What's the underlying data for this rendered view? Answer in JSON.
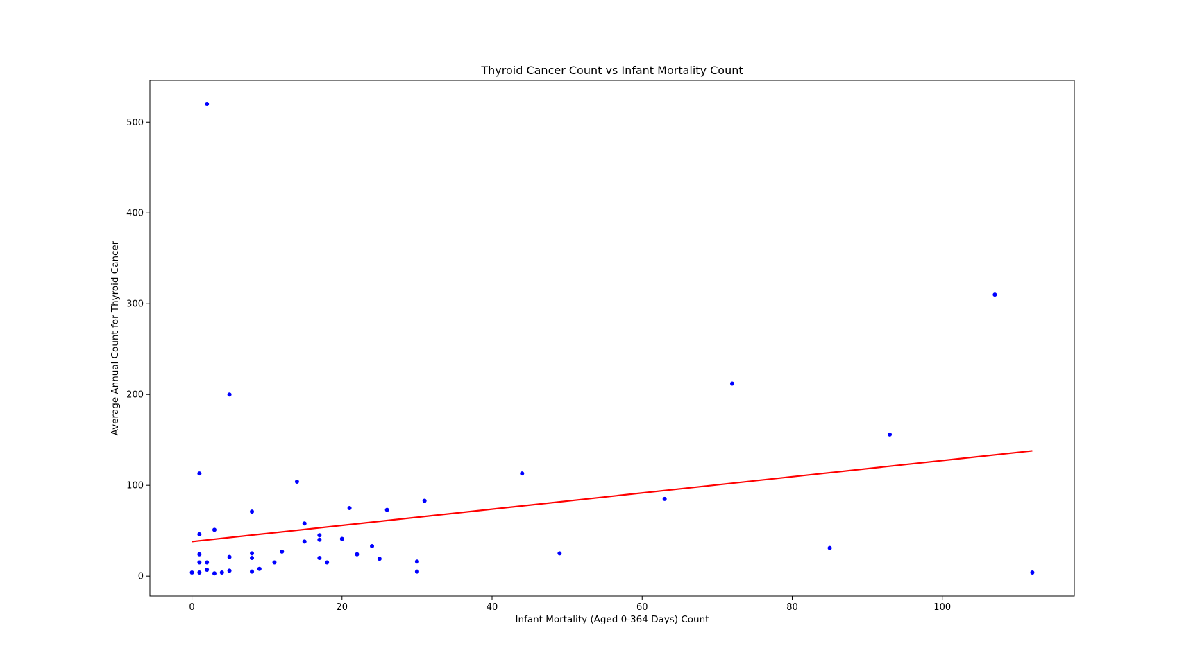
{
  "chart_data": {
    "type": "scatter",
    "title": "Thyroid Cancer Count vs Infant Mortality Count",
    "xlabel": "Infant Mortality (Aged 0-364 Days) Count",
    "ylabel": "Average Annual Count for Thyroid Cancer",
    "xlim": [
      -5.6,
      117.6
    ],
    "ylim": [
      -22,
      546
    ],
    "xticks": [
      0,
      20,
      40,
      60,
      80,
      100
    ],
    "yticks": [
      0,
      100,
      200,
      300,
      400,
      500
    ],
    "grid": false,
    "point_color": "#0000ff",
    "trend_color": "#ff0000",
    "points": [
      {
        "x": 0,
        "y": 4
      },
      {
        "x": 1,
        "y": 4
      },
      {
        "x": 1,
        "y": 15
      },
      {
        "x": 1,
        "y": 24
      },
      {
        "x": 1,
        "y": 46
      },
      {
        "x": 1,
        "y": 113
      },
      {
        "x": 2,
        "y": 520
      },
      {
        "x": 2,
        "y": 7
      },
      {
        "x": 2,
        "y": 15
      },
      {
        "x": 3,
        "y": 3
      },
      {
        "x": 3,
        "y": 51
      },
      {
        "x": 4,
        "y": 4
      },
      {
        "x": 5,
        "y": 6
      },
      {
        "x": 5,
        "y": 21
      },
      {
        "x": 5,
        "y": 200
      },
      {
        "x": 8,
        "y": 5
      },
      {
        "x": 8,
        "y": 20
      },
      {
        "x": 8,
        "y": 25
      },
      {
        "x": 8,
        "y": 71
      },
      {
        "x": 9,
        "y": 8
      },
      {
        "x": 11,
        "y": 15
      },
      {
        "x": 12,
        "y": 27
      },
      {
        "x": 14,
        "y": 104
      },
      {
        "x": 15,
        "y": 38
      },
      {
        "x": 15,
        "y": 58
      },
      {
        "x": 17,
        "y": 20
      },
      {
        "x": 17,
        "y": 40
      },
      {
        "x": 17,
        "y": 45
      },
      {
        "x": 18,
        "y": 15
      },
      {
        "x": 20,
        "y": 41
      },
      {
        "x": 21,
        "y": 75
      },
      {
        "x": 22,
        "y": 24
      },
      {
        "x": 24,
        "y": 33
      },
      {
        "x": 25,
        "y": 19
      },
      {
        "x": 26,
        "y": 73
      },
      {
        "x": 30,
        "y": 5
      },
      {
        "x": 30,
        "y": 16
      },
      {
        "x": 31,
        "y": 83
      },
      {
        "x": 44,
        "y": 113
      },
      {
        "x": 49,
        "y": 25
      },
      {
        "x": 63,
        "y": 85
      },
      {
        "x": 72,
        "y": 212
      },
      {
        "x": 85,
        "y": 31
      },
      {
        "x": 93,
        "y": 156
      },
      {
        "x": 107,
        "y": 310
      },
      {
        "x": 112,
        "y": 4
      }
    ],
    "trend_line": {
      "x": [
        0,
        112
      ],
      "y": [
        38,
        138
      ]
    }
  }
}
